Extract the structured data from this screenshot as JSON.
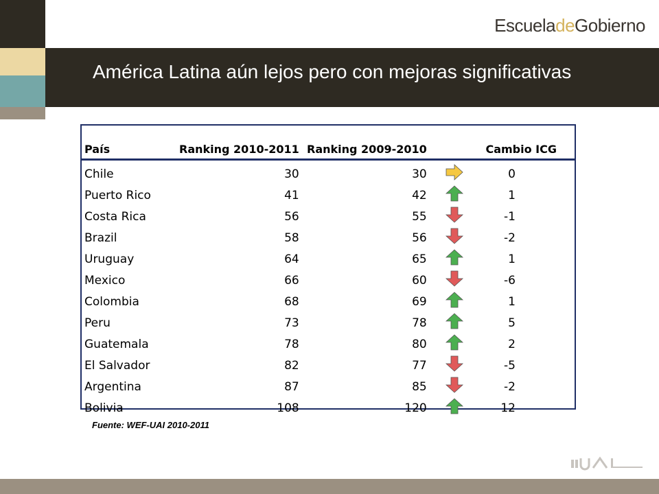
{
  "header": {
    "logo_part1": "Escuela",
    "logo_part2": "de",
    "logo_part3": "Gobierno",
    "title": "América Latina aún lejos pero con mejoras significativas"
  },
  "table": {
    "headers": [
      "País",
      "Ranking 2010-2011",
      "Ranking 2009-2010",
      "",
      "Cambio ICG"
    ],
    "rows": [
      {
        "country": "Chile",
        "r2010": "30",
        "r2009": "30",
        "trend": "same",
        "change": "0"
      },
      {
        "country": "Puerto Rico",
        "r2010": "41",
        "r2009": "42",
        "trend": "up",
        "change": "1"
      },
      {
        "country": "Costa Rica",
        "r2010": "56",
        "r2009": "55",
        "trend": "down",
        "change": "-1"
      },
      {
        "country": "Brazil",
        "r2010": "58",
        "r2009": "56",
        "trend": "down",
        "change": "-2"
      },
      {
        "country": "Uruguay",
        "r2010": "64",
        "r2009": "65",
        "trend": "up",
        "change": "1"
      },
      {
        "country": "Mexico",
        "r2010": "66",
        "r2009": "60",
        "trend": "down",
        "change": "-6"
      },
      {
        "country": "Colombia",
        "r2010": "68",
        "r2009": "69",
        "trend": "up",
        "change": "1"
      },
      {
        "country": "Peru",
        "r2010": "73",
        "r2009": "78",
        "trend": "up",
        "change": "5"
      },
      {
        "country": "Guatemala",
        "r2010": "78",
        "r2009": "80",
        "trend": "up",
        "change": "2"
      },
      {
        "country": "El Salvador",
        "r2010": "82",
        "r2009": "77",
        "trend": "down",
        "change": "-5"
      },
      {
        "country": "Argentina",
        "r2010": "87",
        "r2009": "85",
        "trend": "down",
        "change": "-2"
      },
      {
        "country": "Bolivia",
        "r2010": "108",
        "r2009": "120",
        "trend": "up",
        "change": "12"
      }
    ]
  },
  "source": "Fuente: WEF-UAI 2010-2011",
  "colors": {
    "up_arrow": "#4caf50",
    "down_arrow": "#e05a5a",
    "same_arrow": "#f5c842",
    "header_border": "#1f2f66"
  },
  "icons": {
    "up": "arrow-up-icon",
    "down": "arrow-down-icon",
    "same": "arrow-right-icon"
  }
}
